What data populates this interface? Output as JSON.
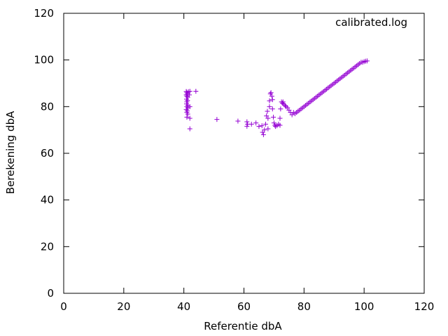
{
  "chart_data": {
    "type": "scatter",
    "title": "",
    "xlabel": "Referentie dbA",
    "ylabel": "Berekening dbA",
    "xlim": [
      0,
      120
    ],
    "ylim": [
      0,
      120
    ],
    "xticks": [
      0,
      20,
      40,
      60,
      80,
      100,
      120
    ],
    "yticks": [
      0,
      20,
      40,
      60,
      80,
      100,
      120
    ],
    "grid": false,
    "legend_position": "top-right",
    "marker": "+",
    "series": [
      {
        "name": "calibrated.log",
        "color": "#9400d3",
        "points": [
          [
            40.8,
            86.5
          ],
          [
            41.0,
            86.0
          ],
          [
            41.2,
            85.5
          ],
          [
            41.5,
            86.4
          ],
          [
            42.0,
            86.6
          ],
          [
            44.0,
            86.6
          ],
          [
            40.8,
            85.0
          ],
          [
            41.0,
            84.5
          ],
          [
            41.3,
            84.0
          ],
          [
            40.9,
            83.2
          ],
          [
            41.2,
            82.6
          ],
          [
            41.0,
            82.0
          ],
          [
            40.9,
            81.2
          ],
          [
            41.3,
            80.6
          ],
          [
            41.0,
            80.0
          ],
          [
            41.4,
            79.5
          ],
          [
            40.8,
            78.8
          ],
          [
            41.1,
            78.2
          ],
          [
            41.0,
            77.5
          ],
          [
            41.3,
            76.8
          ],
          [
            41.0,
            75.5
          ],
          [
            42.0,
            75.0
          ],
          [
            42.0,
            80.0
          ],
          [
            41.8,
            85.0
          ],
          [
            42.0,
            70.5
          ],
          [
            51.0,
            74.5
          ],
          [
            58.0,
            73.8
          ],
          [
            61.0,
            73.5
          ],
          [
            61.0,
            71.6
          ],
          [
            61.2,
            72.5
          ],
          [
            62.5,
            72.5
          ],
          [
            64.0,
            73.0
          ],
          [
            65.0,
            71.5
          ],
          [
            66.0,
            71.8
          ],
          [
            66.2,
            69.0
          ],
          [
            66.5,
            68.0
          ],
          [
            66.8,
            70.0
          ],
          [
            67.2,
            72.5
          ],
          [
            67.5,
            76.0
          ],
          [
            67.8,
            78.0
          ],
          [
            68.0,
            70.5
          ],
          [
            68.0,
            75.0
          ],
          [
            68.5,
            80.0
          ],
          [
            68.5,
            82.5
          ],
          [
            68.8,
            85.5
          ],
          [
            69.0,
            86.0
          ],
          [
            69.3,
            84.5
          ],
          [
            69.5,
            83.0
          ],
          [
            69.5,
            79.0
          ],
          [
            69.8,
            75.5
          ],
          [
            70.0,
            73.0
          ],
          [
            70.3,
            72.0
          ],
          [
            70.5,
            71.5
          ],
          [
            71.0,
            71.8
          ],
          [
            71.5,
            72.5
          ],
          [
            72.0,
            72.0
          ],
          [
            72.0,
            75.0
          ],
          [
            72.2,
            79.0
          ],
          [
            72.5,
            82.0
          ],
          [
            72.8,
            81.5
          ],
          [
            73.0,
            82.0
          ],
          [
            73.3,
            81.0
          ],
          [
            73.7,
            80.5
          ],
          [
            74.0,
            80.0
          ],
          [
            74.5,
            79.5
          ],
          [
            75.0,
            78.5
          ],
          [
            75.5,
            77.5
          ],
          [
            76.0,
            76.5
          ],
          [
            76.5,
            77.5
          ],
          [
            77.0,
            77.0
          ],
          [
            77.5,
            77.5
          ],
          [
            78.0,
            78.0
          ],
          [
            78.5,
            78.5
          ],
          [
            79.0,
            79.0
          ],
          [
            79.5,
            79.5
          ],
          [
            80.0,
            80.0
          ],
          [
            80.5,
            80.5
          ],
          [
            81.0,
            81.0
          ],
          [
            81.5,
            81.5
          ],
          [
            82.0,
            82.0
          ],
          [
            82.5,
            82.5
          ],
          [
            83.0,
            83.0
          ],
          [
            83.5,
            83.5
          ],
          [
            84.0,
            84.0
          ],
          [
            84.5,
            84.5
          ],
          [
            85.0,
            85.0
          ],
          [
            85.5,
            85.5
          ],
          [
            86.0,
            86.0
          ],
          [
            86.5,
            86.5
          ],
          [
            87.0,
            87.0
          ],
          [
            87.5,
            87.5
          ],
          [
            88.0,
            88.0
          ],
          [
            88.5,
            88.5
          ],
          [
            89.0,
            89.0
          ],
          [
            89.5,
            89.5
          ],
          [
            90.0,
            90.0
          ],
          [
            90.5,
            90.5
          ],
          [
            91.0,
            91.0
          ],
          [
            91.5,
            91.5
          ],
          [
            92.0,
            92.0
          ],
          [
            92.5,
            92.5
          ],
          [
            93.0,
            93.0
          ],
          [
            93.5,
            93.5
          ],
          [
            94.0,
            94.0
          ],
          [
            94.5,
            94.5
          ],
          [
            95.0,
            95.0
          ],
          [
            95.5,
            95.5
          ],
          [
            96.0,
            96.0
          ],
          [
            96.5,
            96.5
          ],
          [
            97.0,
            97.0
          ],
          [
            97.5,
            97.5
          ],
          [
            98.0,
            98.0
          ],
          [
            98.5,
            98.5
          ],
          [
            99.0,
            99.0
          ],
          [
            99.5,
            99.0
          ],
          [
            100.0,
            99.3
          ],
          [
            100.5,
            99.5
          ],
          [
            101.0,
            99.6
          ]
        ]
      }
    ]
  }
}
